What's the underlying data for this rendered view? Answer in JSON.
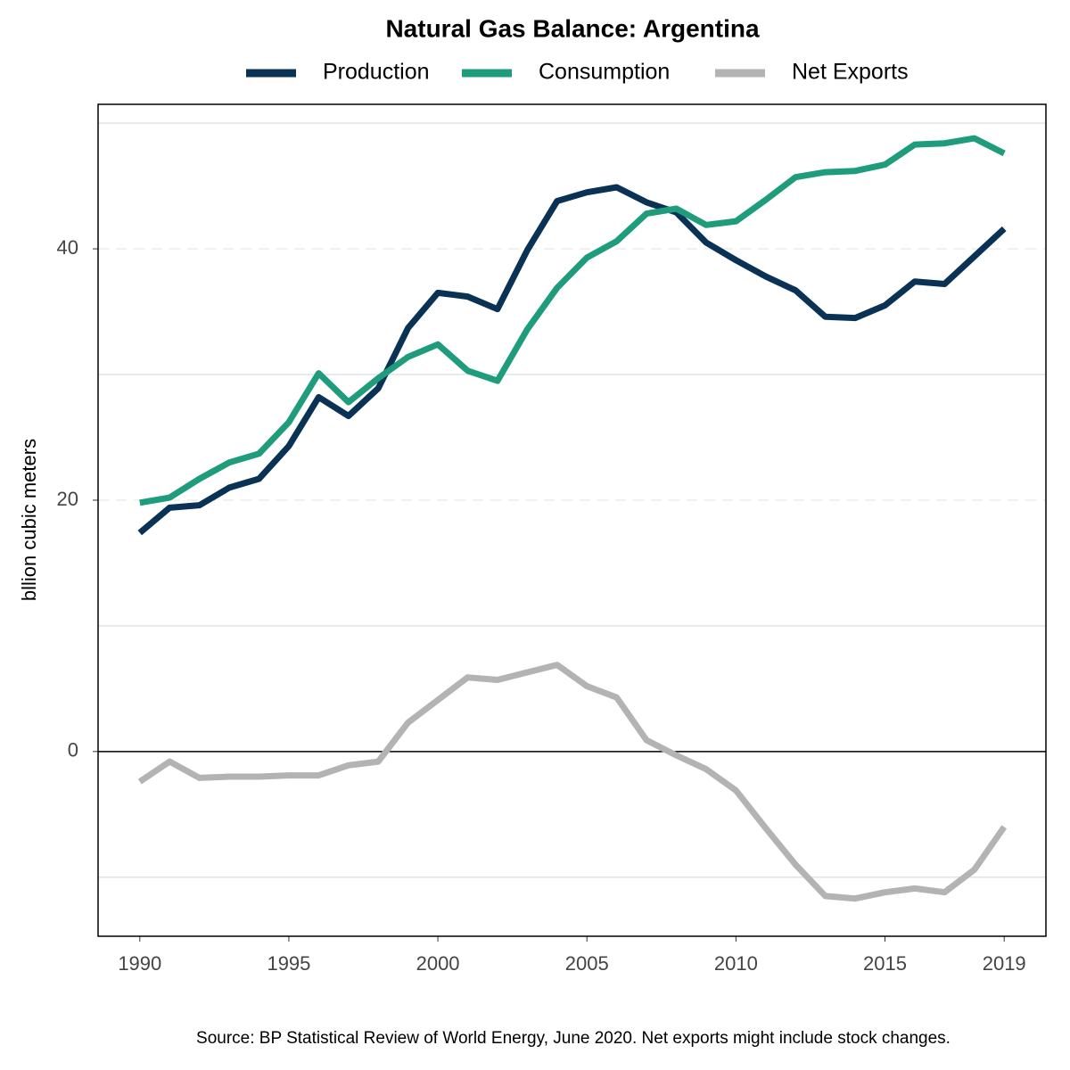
{
  "chart_data": {
    "type": "line",
    "title": "Natural Gas Balance: Argentina",
    "y_label": "bllion cubic meters",
    "source": "Source: BP Statistical Review of World Energy, June 2020. Net exports might include stock changes.",
    "x": [
      1990,
      1991,
      1992,
      1993,
      1994,
      1995,
      1996,
      1997,
      1998,
      1999,
      2000,
      2001,
      2002,
      2003,
      2004,
      2005,
      2006,
      2007,
      2008,
      2009,
      2010,
      2011,
      2012,
      2013,
      2014,
      2015,
      2016,
      2017,
      2018,
      2019
    ],
    "series": [
      {
        "name": "Production",
        "color": "#0a3254",
        "values": [
          17.4,
          19.4,
          19.6,
          21.0,
          21.7,
          24.3,
          28.2,
          26.7,
          28.9,
          33.7,
          36.5,
          36.2,
          35.2,
          39.9,
          43.8,
          44.5,
          44.9,
          43.7,
          42.9,
          40.5,
          39.1,
          37.8,
          36.7,
          34.6,
          34.5,
          35.5,
          37.4,
          37.2,
          39.4,
          41.6
        ]
      },
      {
        "name": "Consumption",
        "color": "#1e9c7c",
        "values": [
          19.8,
          20.2,
          21.7,
          23.0,
          23.7,
          26.2,
          30.1,
          27.8,
          29.7,
          31.4,
          32.4,
          30.3,
          29.5,
          33.6,
          36.9,
          39.3,
          40.6,
          42.8,
          43.2,
          41.9,
          42.2,
          43.9,
          45.7,
          46.1,
          46.2,
          46.7,
          48.3,
          48.4,
          48.8,
          47.6
        ]
      },
      {
        "name": "Net Exports",
        "color": "#b3b3b3",
        "values": [
          -2.4,
          -0.8,
          -2.1,
          -2.0,
          -2.0,
          -1.9,
          -1.9,
          -1.1,
          -0.8,
          2.3,
          4.1,
          5.9,
          5.7,
          6.3,
          6.9,
          5.2,
          4.3,
          0.9,
          -0.3,
          -1.4,
          -3.1,
          -6.1,
          -9.0,
          -11.5,
          -11.7,
          -11.2,
          -10.9,
          -11.2,
          -9.4,
          -6.0
        ]
      }
    ],
    "xlim": [
      1988.6,
      2020.4
    ],
    "xticks": [
      1990,
      1995,
      2000,
      2005,
      2010,
      2015,
      2019
    ],
    "ylim": [
      -14.7,
      51.5
    ],
    "yticks": [
      0,
      20,
      40
    ],
    "yticks_minor": [
      -10,
      10,
      30,
      50
    ],
    "grid": true,
    "legend": "top"
  }
}
